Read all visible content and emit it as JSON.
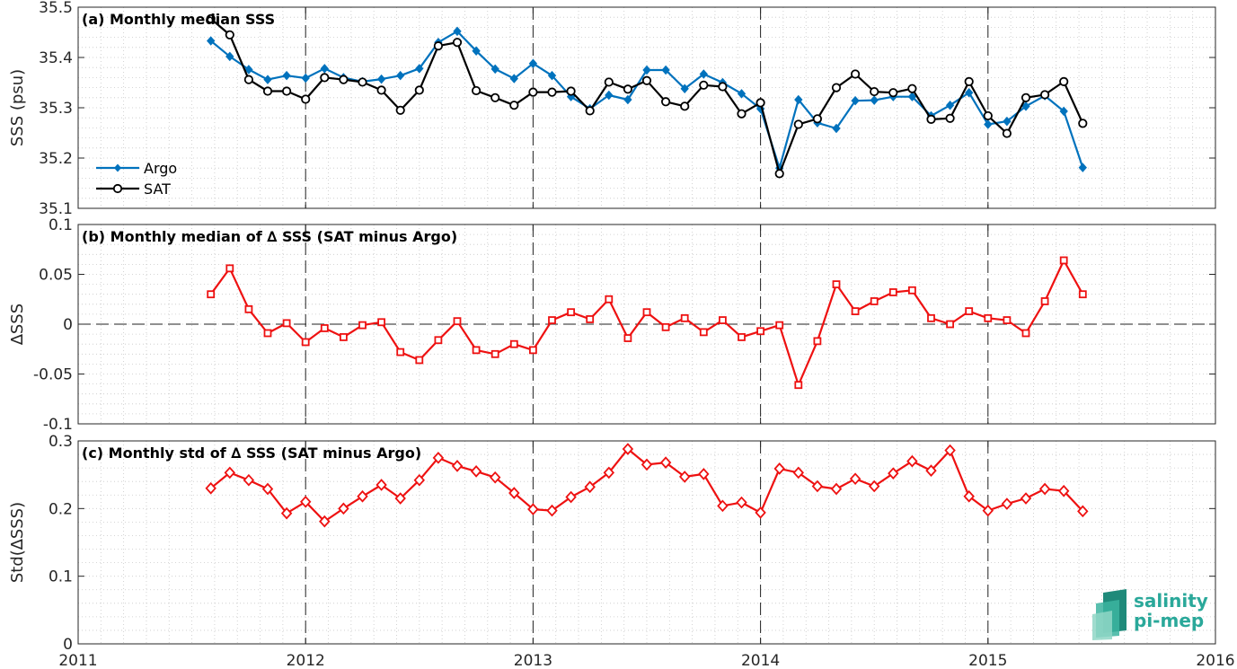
{
  "chart_data": [
    {
      "type": "line",
      "title": "(a) Monthly median SSS",
      "ylabel": "SSS (psu)",
      "xlim": [
        2011,
        2016
      ],
      "ylim": [
        35.1,
        35.5
      ],
      "x_ticks": [
        "2011",
        "2012",
        "2013",
        "2014",
        "2015",
        "2016"
      ],
      "y_ticks": [
        "35.1",
        "35.2",
        "35.3",
        "35.4",
        "35.5"
      ],
      "y_tick_values": [
        35.1,
        35.2,
        35.3,
        35.4,
        35.5
      ],
      "grid": true,
      "legend_position": "lower-left",
      "x": [
        "2011-08",
        "2011-09",
        "2011-10",
        "2011-11",
        "2011-12",
        "2012-01",
        "2012-02",
        "2012-03",
        "2012-04",
        "2012-05",
        "2012-06",
        "2012-07",
        "2012-08",
        "2012-09",
        "2012-10",
        "2012-11",
        "2012-12",
        "2013-01",
        "2013-02",
        "2013-03",
        "2013-04",
        "2013-05",
        "2013-06",
        "2013-07",
        "2013-08",
        "2013-09",
        "2013-10",
        "2013-11",
        "2013-12",
        "2014-01",
        "2014-02",
        "2014-03",
        "2014-04",
        "2014-05",
        "2014-06",
        "2014-07",
        "2014-08",
        "2014-09",
        "2014-10",
        "2014-11",
        "2014-12",
        "2015-01",
        "2015-02",
        "2015-03",
        "2015-04",
        "2015-05",
        "2015-06"
      ],
      "series": [
        {
          "name": "Argo",
          "color": "#0072bd",
          "marker": "diamond-filled",
          "values": [
            35.433,
            35.402,
            35.376,
            35.356,
            35.364,
            35.359,
            35.378,
            35.36,
            35.352,
            35.357,
            35.364,
            35.378,
            35.43,
            35.452,
            35.413,
            35.377,
            35.358,
            35.388,
            35.364,
            35.322,
            35.298,
            35.325,
            35.316,
            35.375,
            35.375,
            35.338,
            35.367,
            35.35,
            35.328,
            35.298,
            35.18,
            35.316,
            35.27,
            35.259,
            35.314,
            35.315,
            35.322,
            35.322,
            35.284,
            35.305,
            35.33,
            35.267,
            35.273,
            35.303,
            35.324,
            35.293,
            35.181
          ]
        },
        {
          "name": "SAT",
          "color": "#000000",
          "marker": "circle-open",
          "values": [
            35.477,
            35.445,
            35.356,
            35.333,
            35.333,
            35.317,
            35.36,
            35.356,
            35.351,
            35.335,
            35.295,
            35.335,
            35.423,
            35.43,
            35.334,
            35.32,
            35.305,
            35.331,
            35.331,
            35.333,
            35.294,
            35.351,
            35.337,
            35.354,
            35.312,
            35.303,
            35.345,
            35.342,
            35.288,
            35.31,
            35.169,
            35.267,
            35.278,
            35.34,
            35.367,
            35.332,
            35.33,
            35.338,
            35.277,
            35.279,
            35.352,
            35.284,
            35.249,
            35.32,
            35.326,
            35.352,
            35.269
          ]
        }
      ]
    },
    {
      "type": "line",
      "title": "(b) Monthly median of ∆ SSS (SAT minus Argo)",
      "ylabel": "∆SSS",
      "xlim": [
        2011,
        2016
      ],
      "ylim": [
        -0.1,
        0.1
      ],
      "x_ticks": [
        "2011",
        "2012",
        "2013",
        "2014",
        "2015",
        "2016"
      ],
      "y_ticks": [
        "-0.1",
        "-0.05",
        "0",
        "0.05",
        "0.1"
      ],
      "y_tick_values": [
        -0.1,
        -0.05,
        0,
        0.05,
        0.1
      ],
      "grid": true,
      "x": [
        "2011-08",
        "2011-09",
        "2011-10",
        "2011-11",
        "2011-12",
        "2012-01",
        "2012-02",
        "2012-03",
        "2012-04",
        "2012-05",
        "2012-06",
        "2012-07",
        "2012-08",
        "2012-09",
        "2012-10",
        "2012-11",
        "2012-12",
        "2013-01",
        "2013-02",
        "2013-03",
        "2013-04",
        "2013-05",
        "2013-06",
        "2013-07",
        "2013-08",
        "2013-09",
        "2013-10",
        "2013-11",
        "2013-12",
        "2014-01",
        "2014-02",
        "2014-03",
        "2014-04",
        "2014-05",
        "2014-06",
        "2014-07",
        "2014-08",
        "2014-09",
        "2014-10",
        "2014-11",
        "2014-12",
        "2015-01",
        "2015-02",
        "2015-03",
        "2015-04",
        "2015-05",
        "2015-06"
      ],
      "series": [
        {
          "color": "#ee1111",
          "marker": "square-open",
          "values": [
            0.03,
            0.056,
            0.015,
            -0.009,
            0.001,
            -0.018,
            -0.004,
            -0.013,
            -0.001,
            0.002,
            -0.028,
            -0.036,
            -0.016,
            0.003,
            -0.026,
            -0.03,
            -0.02,
            -0.026,
            0.004,
            0.012,
            0.005,
            0.025,
            -0.014,
            0.012,
            -0.003,
            0.006,
            -0.008,
            0.004,
            -0.013,
            -0.007,
            -0.001,
            -0.061,
            -0.017,
            0.04,
            0.013,
            0.023,
            0.032,
            0.034,
            0.006,
            0.0,
            0.013,
            0.006,
            0.004,
            -0.009,
            0.023,
            0.064,
            0.03
          ]
        }
      ]
    },
    {
      "type": "line",
      "title": "(c) Monthly std of ∆ SSS (SAT minus Argo)",
      "ylabel": "Std(∆SSS)",
      "xlim": [
        2011,
        2016
      ],
      "ylim": [
        0,
        0.3
      ],
      "x_ticks": [
        "2011",
        "2012",
        "2013",
        "2014",
        "2015",
        "2016"
      ],
      "y_ticks": [
        "0",
        "0.1",
        "0.2",
        "0.3"
      ],
      "y_tick_values": [
        0,
        0.1,
        0.2,
        0.3
      ],
      "grid": true,
      "x": [
        "2011-08",
        "2011-09",
        "2011-10",
        "2011-11",
        "2011-12",
        "2012-01",
        "2012-02",
        "2012-03",
        "2012-04",
        "2012-05",
        "2012-06",
        "2012-07",
        "2012-08",
        "2012-09",
        "2012-10",
        "2012-11",
        "2012-12",
        "2013-01",
        "2013-02",
        "2013-03",
        "2013-04",
        "2013-05",
        "2013-06",
        "2013-07",
        "2013-08",
        "2013-09",
        "2013-10",
        "2013-11",
        "2013-12",
        "2014-01",
        "2014-02",
        "2014-03",
        "2014-04",
        "2014-05",
        "2014-06",
        "2014-07",
        "2014-08",
        "2014-09",
        "2014-10",
        "2014-11",
        "2014-12",
        "2015-01",
        "2015-02",
        "2015-03",
        "2015-04",
        "2015-05",
        "2015-06"
      ],
      "series": [
        {
          "color": "#ee1111",
          "marker": "diamond-open",
          "values": [
            0.23,
            0.253,
            0.242,
            0.229,
            0.193,
            0.21,
            0.181,
            0.2,
            0.218,
            0.235,
            0.215,
            0.242,
            0.275,
            0.263,
            0.255,
            0.246,
            0.223,
            0.199,
            0.197,
            0.217,
            0.232,
            0.253,
            0.288,
            0.265,
            0.268,
            0.247,
            0.251,
            0.204,
            0.209,
            0.194,
            0.259,
            0.253,
            0.233,
            0.229,
            0.244,
            0.233,
            0.252,
            0.27,
            0.256,
            0.286,
            0.218,
            0.197,
            0.207,
            0.215,
            0.229,
            0.226,
            0.196
          ]
        }
      ]
    }
  ],
  "logo": {
    "line1": "salinity",
    "line2": "pi-mep"
  }
}
